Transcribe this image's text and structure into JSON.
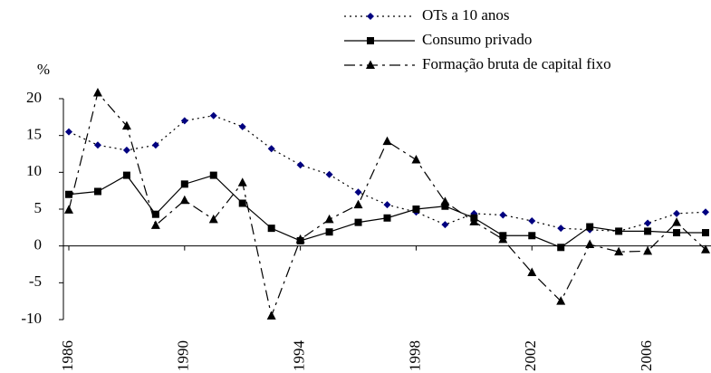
{
  "chart_data": {
    "type": "line",
    "y_unit_label": "%",
    "x": [
      1986,
      1987,
      1988,
      1989,
      1990,
      1991,
      1992,
      1993,
      1994,
      1995,
      1996,
      1997,
      1998,
      1999,
      2000,
      2001,
      2002,
      2003,
      2004,
      2005,
      2006,
      2007,
      2008
    ],
    "xlim": [
      1986,
      2008
    ],
    "xticks": [
      1986,
      1990,
      1994,
      1998,
      2002,
      2006
    ],
    "ylim": [
      -10,
      20
    ],
    "yticks": [
      -10,
      -5,
      0,
      5,
      10,
      15,
      20
    ],
    "grid": false,
    "legend": "top",
    "series": [
      {
        "name": "OTs a 10 anos",
        "color": "#000080",
        "line_color": "#000000",
        "marker": "diamond",
        "line_style": "dotted",
        "values": [
          15.5,
          13.7,
          13.0,
          13.7,
          17.0,
          17.7,
          16.2,
          13.2,
          11.0,
          9.7,
          7.3,
          5.6,
          4.6,
          2.9,
          4.4,
          4.2,
          3.4,
          2.4,
          2.2,
          2.0,
          3.1,
          4.4,
          4.6
        ]
      },
      {
        "name": "Consumo privado",
        "color": "#000000",
        "line_color": "#000000",
        "marker": "square",
        "line_style": "solid",
        "values": [
          7.0,
          7.4,
          9.6,
          4.3,
          8.4,
          9.6,
          5.8,
          2.4,
          0.7,
          1.9,
          3.2,
          3.8,
          5.0,
          5.4,
          3.8,
          1.4,
          1.4,
          -0.2,
          2.6,
          2.0,
          2.0,
          1.8,
          1.8
        ]
      },
      {
        "name": "Formação bruta de capital fixo",
        "color": "#000000",
        "line_color": "#000000",
        "marker": "triangle",
        "line_style": "dashdot",
        "values": [
          4.9,
          20.8,
          16.3,
          2.8,
          6.2,
          3.6,
          8.6,
          -9.5,
          0.9,
          3.6,
          5.6,
          14.2,
          11.7,
          6.0,
          3.3,
          0.9,
          -3.6,
          -7.5,
          0.2,
          -0.8,
          -0.7,
          3.2,
          -0.5
        ]
      }
    ]
  }
}
